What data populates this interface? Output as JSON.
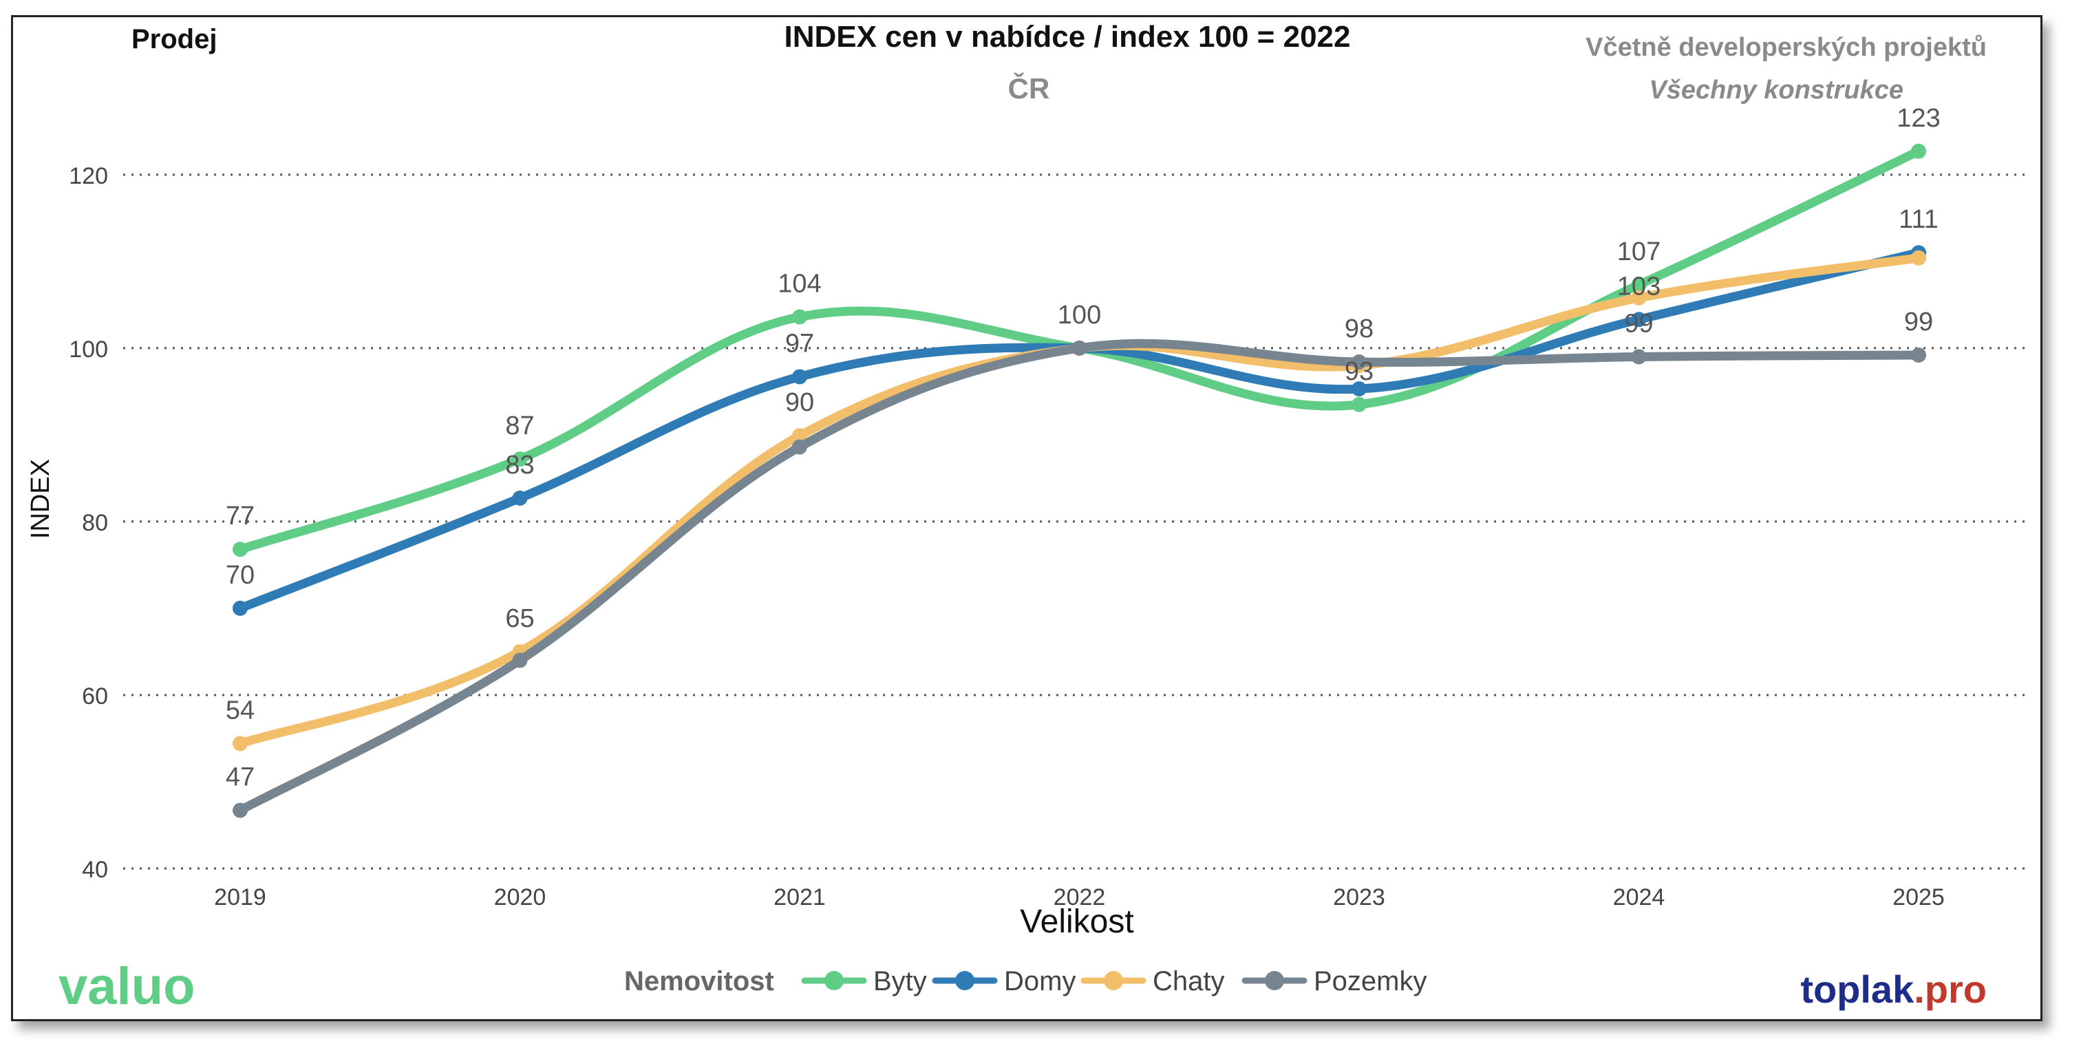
{
  "header": {
    "left_label": "Prodej",
    "title": "INDEX cen v nabídce / index 100 = 2022",
    "region": "ČR",
    "note1": "Včetně developerských projektů",
    "note2": "Všechny konstrukce"
  },
  "brand": {
    "left_logo": "valuo",
    "right_logo_main": "toplak",
    "right_logo_suffix": ".pro"
  },
  "colors": {
    "Byty": "#5fcd85",
    "Domy": "#2f7bb5",
    "Chaty": "#f3be6a",
    "Pozemky": "#76858f",
    "grid": "#555555",
    "header_gray": "#8a8a8a",
    "valuo": "#5fcd85",
    "toplak": "#1f2d8a",
    "pro": "#c0392b"
  },
  "chart_data": {
    "type": "line",
    "x": [
      "2019",
      "2020",
      "2021",
      "2022",
      "2023",
      "2024",
      "2025"
    ],
    "xlabel": "Velikost",
    "ylabel": "INDEX",
    "ylim": [
      40,
      128
    ],
    "yticks": [
      40,
      60,
      80,
      100,
      120
    ],
    "grid": "horizontal dotted",
    "legend_title": "Nemovitost",
    "legend_position": "bottom-center",
    "series": [
      {
        "name": "Byty",
        "values": [
          76.8,
          87.2,
          103.6,
          100,
          93.5,
          107.3,
          122.7
        ],
        "labels": [
          "77",
          "87",
          "104",
          "",
          "",
          "107",
          "123"
        ]
      },
      {
        "name": "Domy",
        "values": [
          70.0,
          82.7,
          96.7,
          100,
          95.3,
          103.3,
          111.0
        ],
        "labels": [
          "70",
          "83",
          "97",
          "",
          "",
          "103",
          "111"
        ]
      },
      {
        "name": "Chaty",
        "values": [
          54.4,
          65.0,
          89.9,
          100,
          98.0,
          105.8,
          110.4
        ],
        "labels": [
          "54",
          "65",
          "90",
          "",
          "",
          "",
          ""
        ]
      },
      {
        "name": "Pozemky",
        "values": [
          46.7,
          64.0,
          88.6,
          100,
          98.4,
          99.0,
          99.2
        ],
        "labels": [
          "47",
          "",
          "",
          "100",
          "98",
          "99",
          "99"
        ]
      }
    ],
    "extra_labels": [
      {
        "text": "93",
        "x": "2023",
        "y": 93.5
      }
    ]
  }
}
